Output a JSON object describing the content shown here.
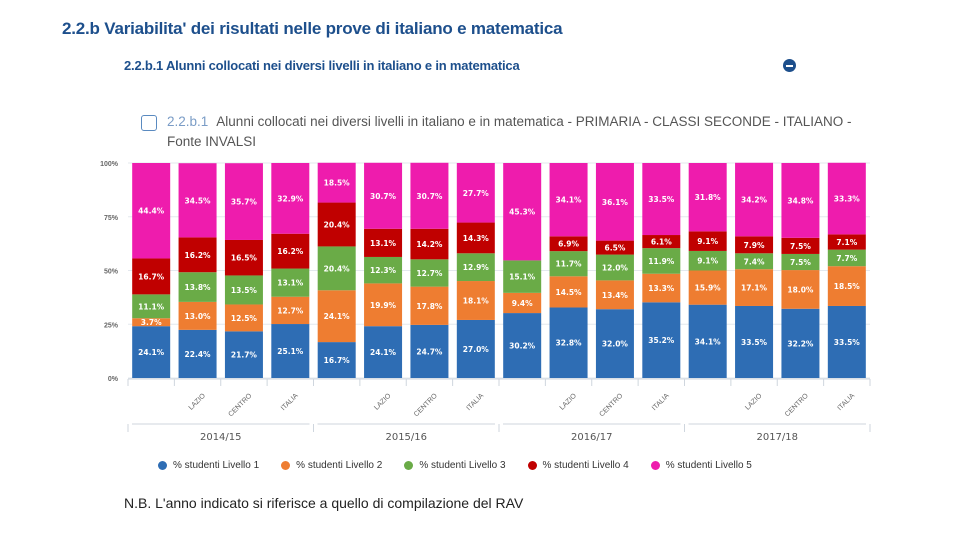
{
  "header": {
    "title": "2.2.b Variabilita' dei risultati nelle prove di italiano e matematica",
    "subtitle": "2.2.b.1 Alunni collocati nei diversi livelli in italiano e in matematica",
    "collapse_icon": "minus-circle-icon"
  },
  "chart_header": {
    "code": "2.2.b.1",
    "title": "Alunni collocati nei diversi livelli in italiano e in matematica - PRIMARIA - CLASSI SECONDE - ITALIANO - Fonte INVALSI"
  },
  "note": "N.B. L'anno indicato si riferisce a quello di compilazione del RAV",
  "chart_data": {
    "type": "bar",
    "stacked": true,
    "percent": true,
    "title": "Alunni collocati nei diversi livelli in italiano e in matematica - PRIMARIA - CLASSI SECONDE - ITALIANO - Fonte INVALSI",
    "xlabel": "",
    "ylabel": "",
    "ylim": [
      0,
      100
    ],
    "yticks": [
      "0%",
      "25%",
      "50%",
      "75%",
      "100%"
    ],
    "groups": [
      "2014/15",
      "2015/16",
      "2016/17",
      "2017/18"
    ],
    "categories": [
      "",
      "LAZIO",
      "CENTRO",
      "ITALIA",
      "",
      "LAZIO",
      "CENTRO",
      "ITALIA",
      "",
      "LAZIO",
      "CENTRO",
      "ITALIA",
      "",
      "LAZIO",
      "CENTRO",
      "ITALIA"
    ],
    "series": [
      {
        "name": "% studenti Livello 1",
        "color": "#2e6db4",
        "values": [
          24.1,
          22.4,
          21.7,
          25.1,
          16.7,
          24.1,
          24.7,
          27.0,
          30.2,
          32.8,
          32.0,
          35.2,
          34.1,
          33.5,
          32.2,
          33.5
        ]
      },
      {
        "name": "% studenti Livello 2",
        "color": "#ee7d31",
        "values": [
          3.7,
          13.0,
          12.5,
          12.7,
          24.1,
          19.9,
          17.8,
          18.1,
          9.4,
          14.5,
          13.4,
          13.3,
          15.9,
          17.1,
          18.0,
          18.5
        ]
      },
      {
        "name": "% studenti Livello 3",
        "color": "#6aab47",
        "values": [
          11.1,
          13.8,
          13.5,
          13.1,
          20.4,
          12.3,
          12.7,
          12.9,
          15.1,
          11.7,
          12.0,
          11.9,
          9.1,
          7.4,
          7.5,
          7.7
        ]
      },
      {
        "name": "% studenti Livello 4",
        "color": "#c00000",
        "values": [
          16.7,
          16.2,
          16.5,
          16.2,
          20.4,
          13.1,
          14.2,
          14.3,
          0,
          6.9,
          6.5,
          6.1,
          9.1,
          7.9,
          7.5,
          7.1
        ]
      },
      {
        "name": "% studenti Livello 5",
        "color": "#ee1cad",
        "values": [
          44.4,
          34.5,
          35.7,
          32.9,
          18.5,
          30.7,
          30.7,
          27.7,
          45.3,
          34.1,
          36.1,
          33.5,
          31.8,
          34.2,
          34.8,
          33.3
        ]
      }
    ],
    "grid": true,
    "legend": "bottom"
  }
}
